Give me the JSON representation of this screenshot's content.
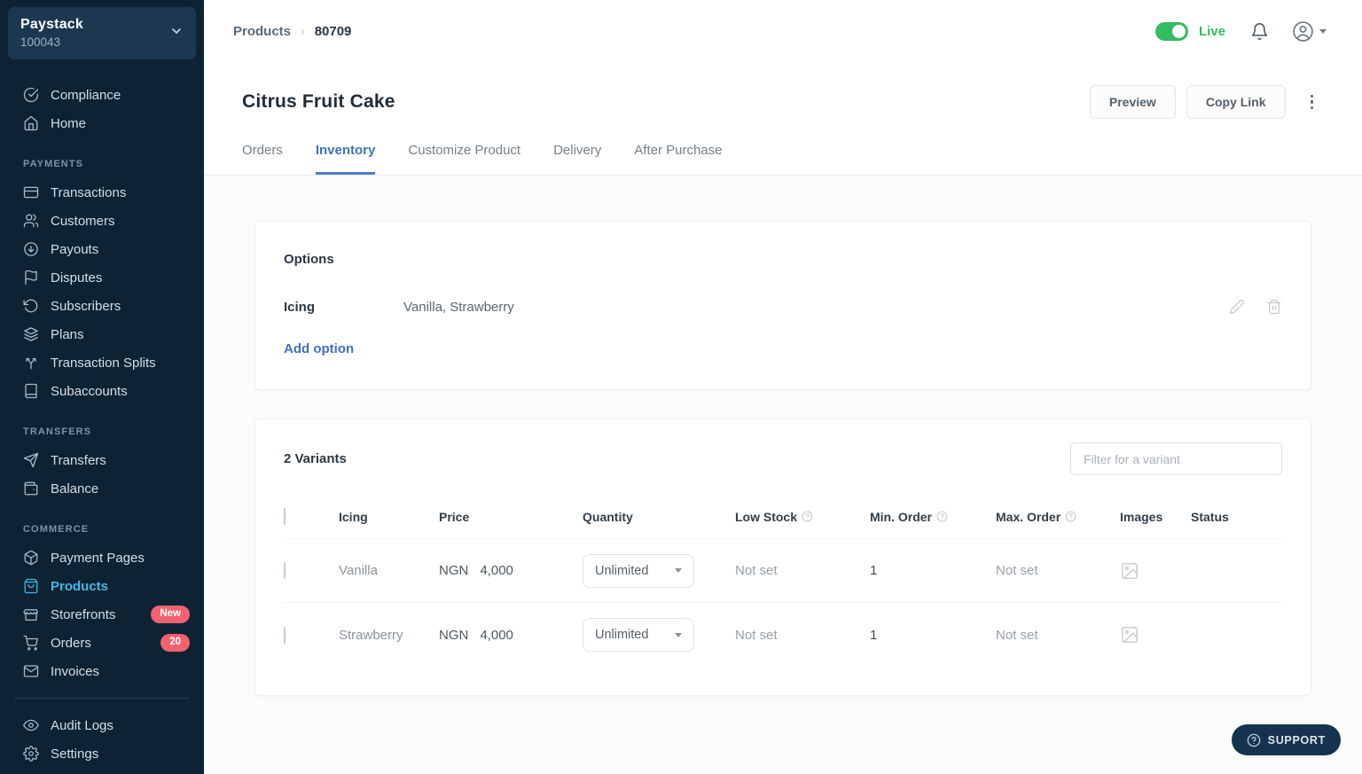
{
  "brand": {
    "name": "Paystack",
    "account_id": "100043"
  },
  "colors": {
    "sidebar-bg": "#0d2334",
    "sidebar-box": "#1b3850",
    "active-blue": "#41b9e6",
    "badge-red": "#f2616e",
    "green": "#33bd5f",
    "link-blue": "#3e72c2",
    "support-bg": "#15334e"
  },
  "sidebar": {
    "sections": [
      {
        "label": "",
        "items": [
          {
            "name": "compliance",
            "label": "Compliance",
            "icon": "compliance"
          },
          {
            "name": "home",
            "label": "Home",
            "icon": "home"
          }
        ]
      },
      {
        "label": "PAYMENTS",
        "items": [
          {
            "name": "transactions",
            "label": "Transactions",
            "icon": "card"
          },
          {
            "name": "customers",
            "label": "Customers",
            "icon": "users"
          },
          {
            "name": "payouts",
            "label": "Payouts",
            "icon": "arrow-down-circle"
          },
          {
            "name": "disputes",
            "label": "Disputes",
            "icon": "flag"
          },
          {
            "name": "subscribers",
            "label": "Subscribers",
            "icon": "rotate-ccw"
          },
          {
            "name": "plans",
            "label": "Plans",
            "icon": "layers"
          },
          {
            "name": "transaction-splits",
            "label": "Transaction Splits",
            "icon": "split"
          },
          {
            "name": "subaccounts",
            "label": "Subaccounts",
            "icon": "book"
          }
        ]
      },
      {
        "label": "TRANSFERS",
        "items": [
          {
            "name": "transfers",
            "label": "Transfers",
            "icon": "send"
          },
          {
            "name": "balance",
            "label": "Balance",
            "icon": "wallet"
          }
        ]
      },
      {
        "label": "COMMERCE",
        "items": [
          {
            "name": "payment-pages",
            "label": "Payment Pages",
            "icon": "package"
          },
          {
            "name": "products",
            "label": "Products",
            "icon": "shopping-bag",
            "active": true
          },
          {
            "name": "storefronts",
            "label": "Storefronts",
            "icon": "store",
            "badge": "New"
          },
          {
            "name": "orders",
            "label": "Orders",
            "icon": "cart",
            "badge": "20"
          },
          {
            "name": "invoices",
            "label": "Invoices",
            "icon": "mail"
          }
        ]
      },
      {
        "label": "",
        "divider_before": true,
        "items": [
          {
            "name": "audit-logs",
            "label": "Audit Logs",
            "icon": "eye"
          },
          {
            "name": "settings",
            "label": "Settings",
            "icon": "gear"
          }
        ]
      }
    ]
  },
  "topbar": {
    "breadcrumb": [
      "Products",
      "80709"
    ],
    "live_label": "Live",
    "live_on": true
  },
  "page": {
    "title": "Citrus Fruit Cake",
    "preview_label": "Preview",
    "copy_link_label": "Copy Link"
  },
  "tabs": [
    {
      "label": "Orders"
    },
    {
      "label": "Inventory",
      "active": true
    },
    {
      "label": "Customize Product"
    },
    {
      "label": "Delivery"
    },
    {
      "label": "After Purchase"
    }
  ],
  "options": {
    "heading": "Options",
    "rows": [
      {
        "label": "Icing",
        "value": "Vanilla, Strawberry"
      }
    ],
    "add_label": "Add option"
  },
  "variants": {
    "count_label": "2 Variants",
    "filter_placeholder": "Filter for a variant",
    "columns": [
      {
        "label": "Icing"
      },
      {
        "label": "Price"
      },
      {
        "label": "Quantity"
      },
      {
        "label": "Low Stock",
        "help": true
      },
      {
        "label": "Min. Order",
        "help": true
      },
      {
        "label": "Max. Order",
        "help": true
      },
      {
        "label": "Images"
      },
      {
        "label": "Status"
      }
    ],
    "rows": [
      {
        "icing": "Vanilla",
        "currency": "NGN",
        "price": "4,000",
        "quantity": "Unlimited",
        "low_stock": "Not set",
        "min_order": "1",
        "max_order": "Not set",
        "status_on": true
      },
      {
        "icing": "Strawberry",
        "currency": "NGN",
        "price": "4,000",
        "quantity": "Unlimited",
        "low_stock": "Not set",
        "min_order": "1",
        "max_order": "Not set",
        "status_on": true
      }
    ]
  },
  "support": {
    "label": "SUPPORT"
  }
}
